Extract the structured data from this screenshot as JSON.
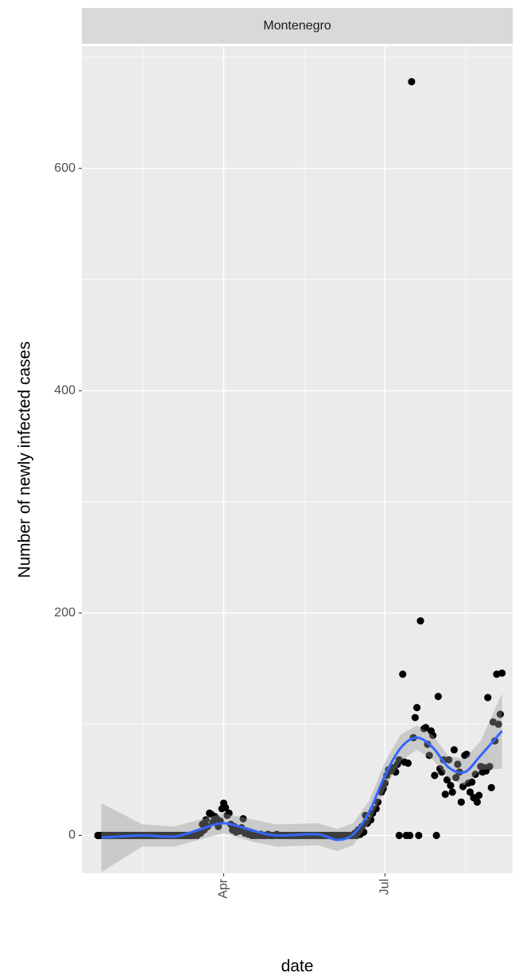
{
  "chart_data": {
    "type": "scatter",
    "facet": "Montenegro",
    "xlabel": "date",
    "ylabel": "Number of newly infected cases",
    "xlim": [
      12,
      255
    ],
    "ylim": [
      -34,
      710
    ],
    "xticks": [
      {
        "value": 92,
        "label": "Apr"
      },
      {
        "value": 183,
        "label": "Jul"
      }
    ],
    "yticks": [
      0,
      200,
      400,
      600
    ],
    "grid": true,
    "color": "#000000",
    "x": [
      21,
      22,
      23,
      24,
      25,
      26,
      27,
      28,
      29,
      30,
      31,
      32,
      33,
      34,
      35,
      36,
      37,
      38,
      39,
      40,
      41,
      42,
      43,
      44,
      45,
      46,
      47,
      48,
      49,
      50,
      51,
      52,
      53,
      54,
      55,
      56,
      57,
      58,
      59,
      60,
      61,
      62,
      63,
      64,
      65,
      66,
      67,
      68,
      69,
      70,
      71,
      72,
      73,
      74,
      75,
      76,
      77,
      78,
      79,
      80,
      81,
      82,
      83,
      84,
      85,
      86,
      87,
      88,
      89,
      90,
      91,
      92,
      93,
      94,
      95,
      96,
      97,
      98,
      99,
      100,
      101,
      102,
      103,
      104,
      105,
      106,
      107,
      108,
      109,
      110,
      111,
      112,
      113,
      114,
      115,
      116,
      117,
      118,
      119,
      120,
      121,
      122,
      123,
      124,
      125,
      126,
      127,
      128,
      129,
      130,
      131,
      132,
      133,
      134,
      135,
      136,
      137,
      138,
      139,
      140,
      141,
      142,
      143,
      144,
      145,
      146,
      147,
      148,
      149,
      150,
      151,
      152,
      153,
      154,
      155,
      156,
      157,
      158,
      159,
      160,
      161,
      162,
      163,
      164,
      165,
      166,
      167,
      168,
      169,
      170,
      171,
      172,
      173,
      175,
      176,
      178,
      179,
      181,
      182,
      183,
      184,
      185,
      186,
      187,
      188,
      189,
      190,
      191,
      191,
      193,
      194,
      195,
      196,
      197,
      198,
      199,
      200,
      201,
      202,
      203,
      205,
      206,
      207,
      208,
      209,
      210,
      211,
      212,
      213,
      214,
      215,
      216,
      217,
      218,
      219,
      220,
      221,
      222,
      223,
      224,
      225,
      226,
      227,
      228,
      229,
      230,
      231,
      232,
      233,
      234,
      235,
      236,
      237,
      238,
      239,
      240,
      241,
      242,
      243,
      244,
      245,
      246,
      247,
      248,
      249
    ],
    "values": [
      0,
      0,
      0,
      0,
      0,
      0,
      0,
      0,
      0,
      0,
      0,
      0,
      0,
      0,
      0,
      0,
      0,
      0,
      0,
      0,
      0,
      0,
      0,
      0,
      0,
      0,
      0,
      0,
      0,
      0,
      0,
      0,
      0,
      0,
      0,
      0,
      0,
      0,
      0,
      0,
      0,
      0,
      0,
      0,
      0,
      0,
      0,
      0,
      0,
      0,
      0,
      0,
      0,
      0,
      0,
      1,
      0,
      3,
      2,
      10,
      5,
      14,
      8,
      20,
      19,
      12,
      17,
      15,
      8,
      13,
      24,
      29,
      25,
      18,
      20,
      10,
      5,
      8,
      3,
      6,
      4,
      7,
      15,
      2,
      4,
      1,
      3,
      0,
      2,
      0,
      1,
      0,
      1,
      0,
      0,
      0,
      1,
      0,
      0,
      0,
      0,
      1,
      0,
      0,
      0,
      0,
      0,
      0,
      0,
      0,
      0,
      0,
      0,
      0,
      0,
      0,
      0,
      0,
      0,
      0,
      0,
      0,
      0,
      0,
      0,
      0,
      0,
      0,
      0,
      0,
      0,
      0,
      0,
      0,
      0,
      0,
      0,
      0,
      0,
      0,
      0,
      0,
      0,
      0,
      0,
      2,
      0,
      5,
      1,
      8,
      3,
      18,
      11,
      14,
      20,
      24,
      30,
      39,
      42,
      47,
      54,
      59,
      58,
      61,
      60,
      57,
      64,
      68,
      0,
      145,
      66,
      0,
      65,
      0,
      678,
      88,
      106,
      115,
      0,
      193,
      96,
      97,
      82,
      72,
      94,
      90,
      54,
      0,
      125,
      60,
      57,
      68,
      37,
      50,
      68,
      45,
      39,
      77,
      52,
      64,
      57,
      30,
      44,
      72,
      73,
      47,
      39,
      48,
      34,
      55,
      30,
      36,
      62,
      57,
      61,
      58,
      124,
      62,
      43,
      102,
      85,
      145,
      100,
      109,
      146
    ],
    "smooth": {
      "color": "#3366ff",
      "x": [
        23,
        46,
        64,
        78,
        92,
        109,
        122,
        145,
        156,
        165,
        174,
        183,
        192,
        201,
        210,
        219,
        228,
        237,
        249
      ],
      "values": [
        -2,
        0,
        -1,
        5,
        11,
        4,
        0,
        1,
        -4,
        1,
        21,
        54,
        79,
        88,
        79,
        61,
        57,
        72,
        94
      ],
      "ymin": [
        -33,
        -10,
        -10,
        -4,
        2,
        -6,
        -10,
        -9,
        -14,
        -9,
        11,
        42,
        67,
        77,
        68,
        51,
        45,
        59,
        60
      ],
      "ymax": [
        29,
        10,
        8,
        14,
        20,
        14,
        10,
        11,
        6,
        11,
        31,
        66,
        91,
        99,
        90,
        71,
        69,
        85,
        128
      ]
    }
  }
}
